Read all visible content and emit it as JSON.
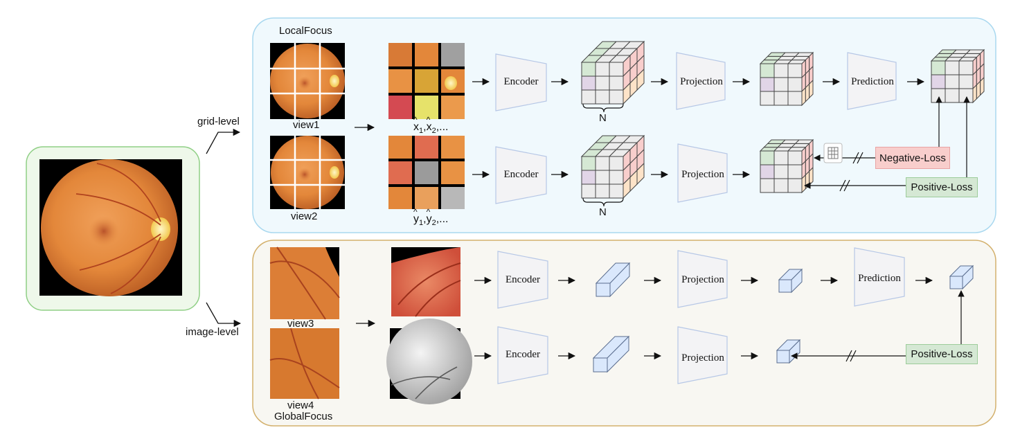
{
  "panels": {
    "local_title": "LocalFocus",
    "global_title": "GlobalFocus"
  },
  "branches": {
    "grid_level": "grid-level",
    "image_level": "image-level"
  },
  "views": {
    "view1": "view1",
    "view2": "view2",
    "view3": "view3",
    "view4": "view4"
  },
  "patch_labels": {
    "x_base1": "x",
    "x_sub1": "1",
    "x_base2": "x",
    "x_sub2": "2",
    "x_tail": ",...",
    "y_base1": "y",
    "y_sub1": "1",
    "y_base2": "y",
    "y_sub2": "2",
    "y_tail": ",..."
  },
  "blocks": {
    "encoder": "Encoder",
    "projection": "Projection",
    "prediction": "Prediction"
  },
  "cube_dim": "N",
  "losses": {
    "negative": "Negative-Loss",
    "positive": "Positive-Loss"
  },
  "colors": {
    "local_panel_bg": "#f0f9fd",
    "local_panel_border": "#a9d8ef",
    "global_panel_bg": "#f8f7f2",
    "global_panel_border": "#d3b06c",
    "input_panel_bg": "#eef8ea",
    "input_panel_border": "#8fcf85",
    "block_fill": "#f3f3f5",
    "block_border": "#b6c7e6",
    "cell_green": "#d5e8d4",
    "cell_purple": "#e1d5e7",
    "cell_red": "#f8cecc",
    "cell_orange": "#fde3c8",
    "cell_gray": "#ececec",
    "vector_fill": "#dae8fc",
    "fundus_orange": "#e3873a",
    "fundus_red": "#e06c50"
  }
}
